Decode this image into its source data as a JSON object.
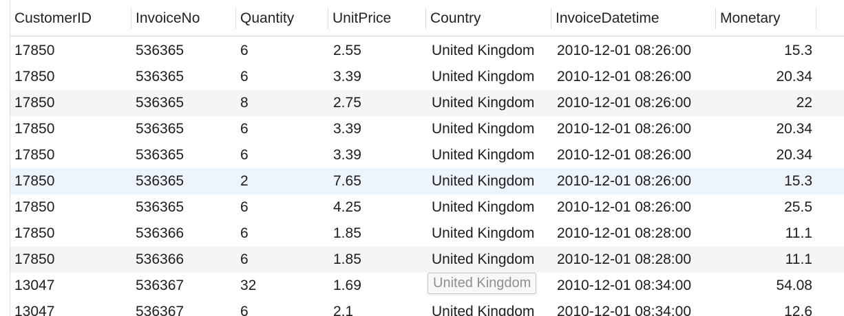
{
  "table": {
    "columns": [
      "CustomerID",
      "InvoiceNo",
      "Quantity",
      "UnitPrice",
      "Country",
      "InvoiceDatetime",
      "Monetary"
    ],
    "rows": [
      [
        "17850",
        "536365",
        "6",
        "2.55",
        "United Kingdom",
        "2010-12-01 08:26:00",
        "15.3"
      ],
      [
        "17850",
        "536365",
        "6",
        "3.39",
        "United Kingdom",
        "2010-12-01 08:26:00",
        "20.34"
      ],
      [
        "17850",
        "536365",
        "8",
        "2.75",
        "United Kingdom",
        "2010-12-01 08:26:00",
        "22"
      ],
      [
        "17850",
        "536365",
        "6",
        "3.39",
        "United Kingdom",
        "2010-12-01 08:26:00",
        "20.34"
      ],
      [
        "17850",
        "536365",
        "6",
        "3.39",
        "United Kingdom",
        "2010-12-01 08:26:00",
        "20.34"
      ],
      [
        "17850",
        "536365",
        "2",
        "7.65",
        "United Kingdom",
        "2010-12-01 08:26:00",
        "15.3"
      ],
      [
        "17850",
        "536365",
        "6",
        "4.25",
        "United Kingdom",
        "2010-12-01 08:26:00",
        "25.5"
      ],
      [
        "17850",
        "536366",
        "6",
        "1.85",
        "United Kingdom",
        "2010-12-01 08:28:00",
        "11.1"
      ],
      [
        "17850",
        "536366",
        "6",
        "1.85",
        "United Kingdom",
        "2010-12-01 08:28:00",
        "11.1"
      ],
      [
        "13047",
        "536367",
        "32",
        "1.69",
        "United Kingdom",
        "2010-12-01 08:34:00",
        "54.08"
      ],
      [
        "13047",
        "536367",
        "6",
        "2.1",
        "United Kingdom",
        "2010-12-01 08:34:00",
        "12.6"
      ]
    ],
    "tooltip": "United Kingdom"
  },
  "colors": {
    "row_alternate": "#f5f5f5",
    "row_highlight": "#eef4fb",
    "grid_line": "#d9d9d9",
    "tooltip_text": "#8e8e93"
  }
}
